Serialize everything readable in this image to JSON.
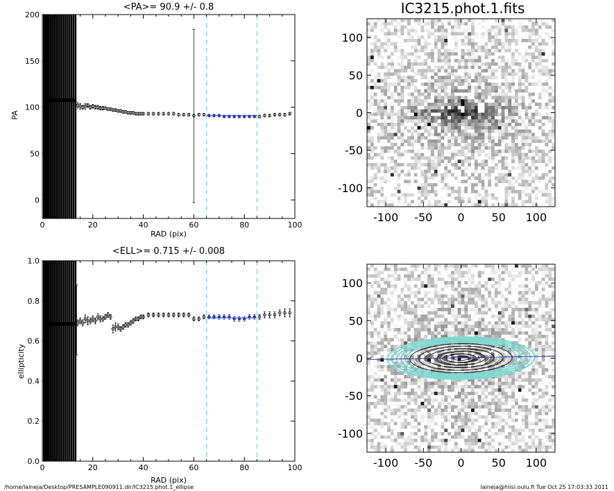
{
  "image_title": "IC3215.phot.1.fits",
  "footer": {
    "left": "/home/laineja/Desktop/PRESAMPLE090911.dir/IC3215.phot.1_ellipse",
    "right": "laineja@hiisi.oulu.fi  Tue Oct 25 17:03:33 2011"
  },
  "colors": {
    "fit": "#2a3bb8",
    "limits": "#66d9e8",
    "contour": "#7fd8d0",
    "axis": "#000000"
  },
  "chart_data": [
    {
      "id": "pa",
      "type": "scatter",
      "title": "<PA>=  90.9 +/-   0.8",
      "xlabel": "RAD (pix)",
      "ylabel": "PA",
      "xlim": [
        0,
        100
      ],
      "ylim": [
        -20,
        200
      ],
      "xticks": [
        0,
        20,
        40,
        60,
        80,
        100
      ],
      "xtick_labels": [
        "0",
        "20",
        "40",
        "60",
        "80",
        "100"
      ],
      "yticks": [
        0,
        50,
        100,
        150,
        200
      ],
      "ytick_labels": [
        "0",
        "50",
        "100",
        "150",
        "200"
      ],
      "inner_flat": {
        "x_end": 13.5,
        "value": 107.5
      },
      "series": [
        {
          "x": [
            14,
            15,
            16,
            17,
            18,
            19,
            20,
            21,
            22,
            23,
            24,
            25,
            26,
            27,
            28,
            29,
            30,
            31,
            32,
            33,
            34,
            35,
            36,
            37,
            38,
            39,
            40,
            42,
            44,
            46,
            48,
            50,
            52,
            54,
            56,
            58,
            60,
            62,
            64,
            66,
            68,
            70,
            72,
            74,
            76,
            78,
            80,
            82,
            84,
            86,
            88,
            90,
            92,
            94,
            96,
            98
          ],
          "y": [
            102,
            101,
            100,
            101,
            102,
            100,
            101,
            100,
            100,
            99,
            99,
            99,
            98,
            98,
            97,
            97,
            96,
            96,
            95,
            95,
            94,
            94,
            94,
            93,
            93,
            93,
            93,
            93,
            93,
            93,
            93,
            93,
            93,
            92,
            92,
            92,
            91,
            92,
            92,
            91,
            91,
            91,
            90,
            90,
            90,
            90,
            90,
            90,
            90,
            90,
            91,
            91,
            92,
            92,
            92,
            93
          ],
          "err": [
            3,
            3,
            2,
            3,
            2,
            2,
            2,
            2,
            2,
            2,
            2,
            1.5,
            1.5,
            1.5,
            1.5,
            1.5,
            1.5,
            1.5,
            1.5,
            1.5,
            1.5,
            1.5,
            1.5,
            1.5,
            1.5,
            1.5,
            1.5,
            1.5,
            1.5,
            1.5,
            1.5,
            1.5,
            1.5,
            1.5,
            1.5,
            1.5,
            1.5,
            1.5,
            1.5,
            1.5,
            1.5,
            1.5,
            1.5,
            1.5,
            1.5,
            1.5,
            1.5,
            1.5,
            1.5,
            1.5,
            1.5,
            1.5,
            1.5,
            1.5,
            1.5,
            1.5
          ]
        }
      ],
      "outlier": {
        "x": 60,
        "y": 91,
        "err_low": -3,
        "err_high": 184
      },
      "fit_range": [
        65,
        85
      ],
      "fit_value": 90.9
    },
    {
      "id": "ell",
      "type": "scatter",
      "title": "<ELL>= 0.715 +/-  0.008",
      "xlabel": "RAD (pix)",
      "ylabel": "ellipticity",
      "xlim": [
        0,
        100
      ],
      "ylim": [
        0.0,
        1.0
      ],
      "xticks": [
        0,
        20,
        40,
        60,
        80,
        100
      ],
      "xtick_labels": [
        "0",
        "20",
        "40",
        "60",
        "80",
        "100"
      ],
      "yticks": [
        0.0,
        0.2,
        0.4,
        0.6,
        0.8,
        1.0
      ],
      "ytick_labels": [
        "0.0",
        "0.2",
        "0.4",
        "0.6",
        "0.8",
        "1.0"
      ],
      "inner_flat": {
        "x_end": 13.5,
        "value": 0.685
      },
      "series": [
        {
          "x": [
            14,
            15,
            16,
            17,
            18,
            19,
            20,
            21,
            22,
            23,
            24,
            25,
            26,
            27,
            28,
            29,
            30,
            31,
            32,
            33,
            34,
            35,
            36,
            37,
            38,
            39,
            40,
            42,
            44,
            46,
            48,
            50,
            52,
            54,
            56,
            58,
            60,
            62,
            64,
            66,
            68,
            70,
            72,
            74,
            76,
            78,
            80,
            82,
            84,
            86,
            88,
            90,
            92,
            94,
            96,
            98
          ],
          "y": [
            0.69,
            0.7,
            0.69,
            0.71,
            0.7,
            0.7,
            0.71,
            0.7,
            0.72,
            0.71,
            0.71,
            0.72,
            0.73,
            0.72,
            0.66,
            0.67,
            0.67,
            0.66,
            0.67,
            0.68,
            0.68,
            0.69,
            0.7,
            0.71,
            0.71,
            0.72,
            0.72,
            0.73,
            0.73,
            0.73,
            0.73,
            0.73,
            0.73,
            0.73,
            0.73,
            0.73,
            0.71,
            0.71,
            0.72,
            0.72,
            0.72,
            0.72,
            0.72,
            0.72,
            0.71,
            0.71,
            0.71,
            0.72,
            0.72,
            0.72,
            0.73,
            0.73,
            0.73,
            0.74,
            0.74,
            0.74
          ],
          "err": [
            0.015,
            0.015,
            0.015,
            0.02,
            0.02,
            0.015,
            0.015,
            0.015,
            0.015,
            0.015,
            0.012,
            0.012,
            0.012,
            0.012,
            0.02,
            0.02,
            0.015,
            0.012,
            0.012,
            0.012,
            0.012,
            0.012,
            0.012,
            0.01,
            0.01,
            0.01,
            0.01,
            0.01,
            0.01,
            0.01,
            0.01,
            0.01,
            0.01,
            0.01,
            0.01,
            0.01,
            0.01,
            0.01,
            0.01,
            0.01,
            0.01,
            0.012,
            0.012,
            0.012,
            0.012,
            0.012,
            0.012,
            0.012,
            0.012,
            0.012,
            0.015,
            0.015,
            0.015,
            0.015,
            0.02,
            0.02
          ]
        }
      ],
      "outlier": {
        "x": 13.6,
        "y": 0.69,
        "err_low": 0.53,
        "err_high": 0.88
      },
      "fit_range": [
        65,
        85
      ],
      "fit_value": 0.715
    },
    {
      "id": "img1",
      "type": "heatmap",
      "xlim": [
        -125,
        125
      ],
      "ylim": [
        -125,
        125
      ],
      "xticks": [
        -100,
        -50,
        0,
        50,
        100
      ],
      "xtick_labels": [
        "-100",
        "-50",
        "0",
        "50",
        "100"
      ],
      "yticks": [
        -100,
        -50,
        0,
        50,
        100
      ],
      "ytick_labels": [
        "-100",
        "-50",
        "0",
        "50",
        "100"
      ],
      "galaxy": {
        "pa_deg": 90.9,
        "ell": 0.715
      }
    },
    {
      "id": "img2",
      "type": "heatmap",
      "xlim": [
        -125,
        125
      ],
      "ylim": [
        -125,
        125
      ],
      "xticks": [
        -100,
        -50,
        0,
        50,
        100
      ],
      "xtick_labels": [
        "-100",
        "-50",
        "0",
        "50",
        "100"
      ],
      "yticks": [
        -100,
        -50,
        0,
        50,
        100
      ],
      "ytick_labels": [
        "-100",
        "-50",
        "0",
        "50",
        "100"
      ],
      "galaxy": {
        "pa_deg": 90.9,
        "ell": 0.715
      },
      "isophote_semi_major": [
        10,
        15,
        20,
        26,
        32,
        38,
        44,
        50,
        56,
        62,
        68,
        74,
        80,
        86,
        92,
        98
      ]
    }
  ]
}
